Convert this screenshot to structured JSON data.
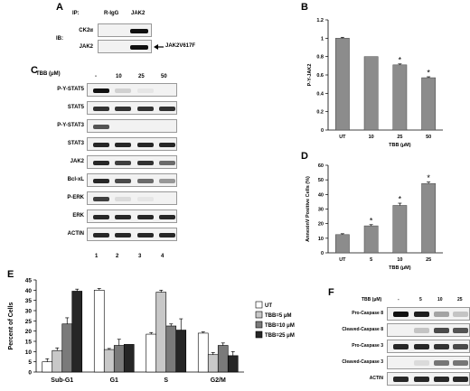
{
  "panels": [
    "A",
    "B",
    "C",
    "D",
    "E",
    "F"
  ],
  "panelA": {
    "ip_label": "IP:",
    "ip_lanes": [
      "R-IgG",
      "JAK2"
    ],
    "ib_label": "IB:",
    "rows": [
      "CK2α",
      "JAK2"
    ],
    "arrow_label": "JAK2V617F"
  },
  "panelC": {
    "treatment_label": "TBB (μM)",
    "lanes": [
      "-",
      "10",
      "25",
      "50"
    ],
    "rows": [
      "P-Y-STAT5",
      "STAT5",
      "P-Y-STAT3",
      "STAT3",
      "JAK2",
      "Bcl-xL",
      "P-ERK",
      "ERK",
      "ACTIN"
    ],
    "lane_numbers": [
      "1",
      "2",
      "3",
      "4"
    ]
  },
  "panelF": {
    "treatment_label": "TBB (μM)",
    "lanes": [
      "-",
      "5",
      "10",
      "25"
    ],
    "rows": [
      "Pro-Caspase 8",
      "Cleaved-Caspase 8",
      "Pro-Caspase 3",
      "Cleaved-Caspase 3",
      "ACTIN"
    ]
  },
  "chart_data": [
    {
      "id": "B",
      "type": "bar",
      "categories": [
        "UT",
        "10",
        "25",
        "50"
      ],
      "values": [
        1.0,
        0.8,
        0.71,
        0.57
      ],
      "errors": [
        0.01,
        0.0,
        0.01,
        0.01
      ],
      "significant": [
        false,
        false,
        true,
        true
      ],
      "ylabel": "P-Y-JAK2",
      "xlabel": "TBB (μM)",
      "ylim": [
        0,
        1.2
      ],
      "yticks": [
        "0",
        "0.2",
        "0.4",
        "0.6",
        "0.8",
        "1",
        "1.2"
      ],
      "bar_color": "#8c8c8c"
    },
    {
      "id": "D",
      "type": "bar",
      "categories": [
        "UT",
        "5",
        "10",
        "25"
      ],
      "values": [
        12.5,
        18.5,
        32.5,
        47.5
      ],
      "errors": [
        0.6,
        0.8,
        1.5,
        1.0
      ],
      "significant": [
        false,
        true,
        true,
        true
      ],
      "ylabel": "AnnexinV Positive Cells (%)",
      "xlabel": "TBB (μM)",
      "ylim": [
        0,
        60
      ],
      "yticks": [
        "0",
        "10",
        "20",
        "30",
        "40",
        "50",
        "60"
      ],
      "bar_color": "#8c8c8c"
    },
    {
      "id": "E",
      "type": "bar",
      "categories": [
        "Sub-G1",
        "G1",
        "S",
        "G2/M"
      ],
      "series": [
        {
          "name": "UT",
          "color": "#ffffff",
          "values": [
            5,
            40,
            18.5,
            19
          ],
          "errors": [
            1.5,
            0.8,
            0.8,
            0.6
          ]
        },
        {
          "name": "TBB=5 μM",
          "color": "#c8c8c8",
          "values": [
            10.5,
            11,
            39,
            8.5
          ],
          "errors": [
            1.3,
            0.5,
            1.0,
            1.0
          ]
        },
        {
          "name": "TBB=10 μM",
          "color": "#7a7a7a",
          "values": [
            23.5,
            13,
            22.5,
            13
          ],
          "errors": [
            3.0,
            3.0,
            1.0,
            1.2
          ]
        },
        {
          "name": "TBB=25 μM",
          "color": "#262626",
          "values": [
            39.5,
            13.5,
            20.5,
            8
          ],
          "errors": [
            1.0,
            0.0,
            5.5,
            2.0
          ]
        }
      ],
      "ylabel": "Percent of Cells",
      "ylim": [
        0,
        45
      ],
      "yticks": [
        "0",
        "5",
        "10",
        "15",
        "20",
        "25",
        "30",
        "35",
        "40",
        "45"
      ],
      "legend_position": "right"
    }
  ]
}
